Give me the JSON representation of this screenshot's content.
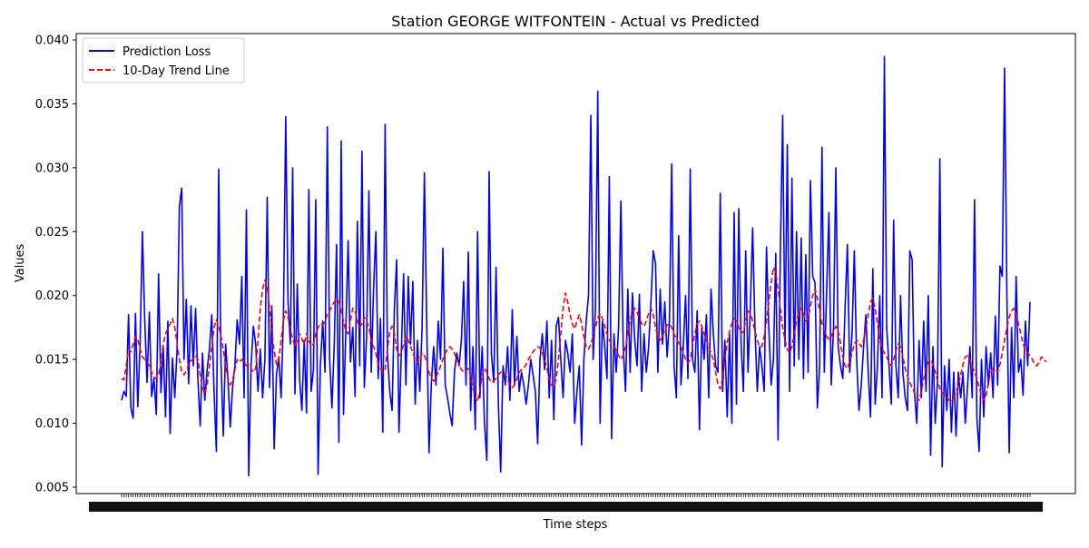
{
  "chart_data": {
    "type": "line",
    "title": "Station GEORGE WITFONTEIN - Actual vs Predicted",
    "xlabel": "Time steps",
    "ylabel": "Values",
    "ylim": [
      0.0045,
      0.0405
    ],
    "yticks": [
      0.005,
      0.01,
      0.015,
      0.02,
      0.025,
      0.03,
      0.035,
      0.04
    ],
    "ytick_labels": [
      "0.005",
      "0.010",
      "0.015",
      "0.020",
      "0.025",
      "0.030",
      "0.035",
      "0.040"
    ],
    "x_range": [
      0,
      559
    ],
    "grid": false,
    "legend_position": "top-left",
    "series": [
      {
        "name": "Prediction Loss",
        "color": "#0000ff",
        "style": "solid",
        "values": [
          0.0118,
          0.0125,
          0.0121,
          0.0185,
          0.0112,
          0.0104,
          0.0186,
          0.0113,
          0.0162,
          0.025,
          0.0181,
          0.0132,
          0.0187,
          0.0121,
          0.0135,
          0.0107,
          0.0217,
          0.0124,
          0.016,
          0.0105,
          0.018,
          0.0092,
          0.0151,
          0.012,
          0.0158,
          0.027,
          0.0284,
          0.015,
          0.0197,
          0.0131,
          0.0192,
          0.0145,
          0.019,
          0.0135,
          0.0098,
          0.0155,
          0.0118,
          0.0142,
          0.0158,
          0.0185,
          0.0125,
          0.0078,
          0.0299,
          0.0148,
          0.009,
          0.0162,
          0.0135,
          0.0097,
          0.0128,
          0.0145,
          0.0181,
          0.0162,
          0.0215,
          0.012,
          0.0267,
          0.0059,
          0.0145,
          0.0176,
          0.0162,
          0.0125,
          0.0158,
          0.012,
          0.015,
          0.0277,
          0.0128,
          0.0192,
          0.008,
          0.0138,
          0.0152,
          0.012,
          0.0182,
          0.034,
          0.0195,
          0.0162,
          0.03,
          0.0123,
          0.0209,
          0.0135,
          0.011,
          0.0165,
          0.0108,
          0.0283,
          0.0125,
          0.0142,
          0.0275,
          0.006,
          0.0145,
          0.018,
          0.014,
          0.0332,
          0.015,
          0.0112,
          0.0162,
          0.024,
          0.0085,
          0.0321,
          0.0107,
          0.0172,
          0.0243,
          0.0148,
          0.0175,
          0.0121,
          0.0258,
          0.0145,
          0.0313,
          0.0128,
          0.0168,
          0.0282,
          0.014,
          0.0205,
          0.025,
          0.0135,
          0.0182,
          0.0093,
          0.0334,
          0.0155,
          0.0125,
          0.011,
          0.0189,
          0.0228,
          0.0093,
          0.0155,
          0.0217,
          0.013,
          0.0215,
          0.0162,
          0.0211,
          0.0115,
          0.0165,
          0.0125,
          0.0175,
          0.0296,
          0.0178,
          0.0077,
          0.0131,
          0.016,
          0.013,
          0.018,
          0.015,
          0.0237,
          0.013,
          0.012,
          0.0108,
          0.0098,
          0.014,
          0.0155,
          0.0145,
          0.0165,
          0.0211,
          0.013,
          0.0234,
          0.011,
          0.016,
          0.0095,
          0.025,
          0.012,
          0.016,
          0.01,
          0.0071,
          0.0297,
          0.0154,
          0.0132,
          0.0222,
          0.0115,
          0.0062,
          0.0145,
          0.013,
          0.016,
          0.0118,
          0.0189,
          0.013,
          0.0168,
          0.0125,
          0.014,
          0.013,
          0.0115,
          0.013,
          0.015,
          0.0138,
          0.0125,
          0.0084,
          0.015,
          0.017,
          0.0142,
          0.018,
          0.012,
          0.0165,
          0.0103,
          0.0176,
          0.0183,
          0.015,
          0.012,
          0.0165,
          0.0155,
          0.014,
          0.017,
          0.01,
          0.0125,
          0.0145,
          0.0083,
          0.015,
          0.018,
          0.02,
          0.0341,
          0.015,
          0.019,
          0.036,
          0.01,
          0.018,
          0.016,
          0.0135,
          0.0293,
          0.0088,
          0.017,
          0.014,
          0.0175,
          0.0274,
          0.016,
          0.0125,
          0.0205,
          0.014,
          0.0202,
          0.0165,
          0.0145,
          0.0201,
          0.0125,
          0.017,
          0.014,
          0.016,
          0.0195,
          0.0235,
          0.0225,
          0.014,
          0.0205,
          0.0162,
          0.0195,
          0.0152,
          0.018,
          0.0303,
          0.0145,
          0.012,
          0.0247,
          0.013,
          0.016,
          0.02,
          0.0135,
          0.0299,
          0.015,
          0.014,
          0.0188,
          0.0095,
          0.0175,
          0.015,
          0.0185,
          0.012,
          0.0205,
          0.017,
          0.0145,
          0.014,
          0.028,
          0.0125,
          0.0165,
          0.0105,
          0.017,
          0.01,
          0.0265,
          0.0115,
          0.0268,
          0.0162,
          0.0125,
          0.0235,
          0.014,
          0.019,
          0.0253,
          0.0175,
          0.0125,
          0.016,
          0.0145,
          0.0125,
          0.0238,
          0.0175,
          0.013,
          0.015,
          0.0233,
          0.0087,
          0.0235,
          0.0341,
          0.016,
          0.0318,
          0.0125,
          0.0292,
          0.0145,
          0.025,
          0.015,
          0.0245,
          0.0135,
          0.0232,
          0.014,
          0.029,
          0.0215,
          0.021,
          0.0112,
          0.0145,
          0.0316,
          0.014,
          0.0202,
          0.0265,
          0.013,
          0.0175,
          0.03,
          0.016,
          0.0145,
          0.0135,
          0.019,
          0.024,
          0.014,
          0.017,
          0.0235,
          0.015,
          0.011,
          0.013,
          0.016,
          0.0185,
          0.014,
          0.0105,
          0.0221,
          0.0115,
          0.0145,
          0.02,
          0.012,
          0.0387,
          0.0175,
          0.0145,
          0.0115,
          0.0259,
          0.0145,
          0.012,
          0.02,
          0.014,
          0.012,
          0.011,
          0.0235,
          0.0228,
          0.0125,
          0.01,
          0.0165,
          0.012,
          0.018,
          0.0125,
          0.02,
          0.0075,
          0.016,
          0.01,
          0.0135,
          0.0307,
          0.0066,
          0.0145,
          0.011,
          0.015,
          0.0093,
          0.014,
          0.009,
          0.014,
          0.012,
          0.014,
          0.01,
          0.013,
          0.016,
          0.012,
          0.0275,
          0.0105,
          0.0078,
          0.015,
          0.0105,
          0.016,
          0.013,
          0.0155,
          0.012,
          0.0184,
          0.013,
          0.0223,
          0.0215,
          0.0378,
          0.02,
          0.0077,
          0.0175,
          0.012,
          0.0215,
          0.014,
          0.015,
          0.0122,
          0.018,
          0.0145,
          0.0195
        ]
      },
      {
        "name": "10-Day Trend Line",
        "color": "#ff0000",
        "style": "dashed",
        "values": [
          0.0135,
          0.0134,
          0.0145,
          0.0158,
          0.0156,
          0.0162,
          0.0168,
          0.0165,
          0.0158,
          0.0152,
          0.015,
          0.0148,
          0.0145,
          0.014,
          0.0136,
          0.0135,
          0.0138,
          0.0148,
          0.0162,
          0.017,
          0.0174,
          0.0178,
          0.0182,
          0.0175,
          0.0162,
          0.015,
          0.014,
          0.0138,
          0.0141,
          0.0146,
          0.0149,
          0.015,
          0.0153,
          0.015,
          0.0138,
          0.0128,
          0.0123,
          0.013,
          0.0145,
          0.016,
          0.0175,
          0.0181,
          0.0176,
          0.0168,
          0.0158,
          0.0145,
          0.0135,
          0.013,
          0.0134,
          0.0142,
          0.015,
          0.0148,
          0.015,
          0.0148,
          0.0145,
          0.0146,
          0.0143,
          0.014,
          0.0143,
          0.0165,
          0.019,
          0.0205,
          0.0212,
          0.0206,
          0.019,
          0.0172,
          0.0157,
          0.0146,
          0.015,
          0.0165,
          0.018,
          0.0188,
          0.0183,
          0.0173,
          0.0166,
          0.016,
          0.0165,
          0.017,
          0.0166,
          0.0162,
          0.017,
          0.0165,
          0.016,
          0.0162,
          0.017,
          0.0175,
          0.0178,
          0.0177,
          0.018,
          0.0185,
          0.0188,
          0.0192,
          0.0195,
          0.0197,
          0.0195,
          0.0188,
          0.018,
          0.0172,
          0.017,
          0.018,
          0.019,
          0.0188,
          0.018,
          0.0175,
          0.0178,
          0.0183,
          0.018,
          0.0175,
          0.0165,
          0.016,
          0.0155,
          0.0146,
          0.0143,
          0.014,
          0.0142,
          0.0158,
          0.0172,
          0.0176,
          0.017,
          0.0158,
          0.0153,
          0.0155,
          0.0162,
          0.0168,
          0.0165,
          0.016,
          0.0155,
          0.015,
          0.0147,
          0.015,
          0.0155,
          0.0153,
          0.0148,
          0.014,
          0.0135,
          0.0133,
          0.0136,
          0.014,
          0.0145,
          0.015,
          0.0155,
          0.0158,
          0.016,
          0.0158,
          0.0155,
          0.015,
          0.0146,
          0.0142,
          0.014,
          0.0141,
          0.0143,
          0.0137,
          0.0128,
          0.012,
          0.0117,
          0.0125,
          0.0138,
          0.0143,
          0.014,
          0.0135,
          0.0132,
          0.0133,
          0.0135,
          0.0138,
          0.014,
          0.014,
          0.0138,
          0.0135,
          0.013,
          0.0128,
          0.013,
          0.0135,
          0.014,
          0.0142,
          0.0143,
          0.0146,
          0.015,
          0.0153,
          0.0156,
          0.0158,
          0.016,
          0.0159,
          0.0155,
          0.015,
          0.0143,
          0.0135,
          0.013,
          0.0128,
          0.0135,
          0.015,
          0.017,
          0.019,
          0.0202,
          0.0195,
          0.0185,
          0.0178,
          0.0174,
          0.018,
          0.0185,
          0.0178,
          0.0168,
          0.016,
          0.0158,
          0.0162,
          0.0168,
          0.0175,
          0.0182,
          0.0186,
          0.0182,
          0.0176,
          0.017,
          0.0165,
          0.0162,
          0.016,
          0.0157,
          0.0153,
          0.015,
          0.0153,
          0.016,
          0.017,
          0.018,
          0.0188,
          0.019,
          0.0187,
          0.0182,
          0.0178,
          0.0176,
          0.018,
          0.0186,
          0.019,
          0.0185,
          0.0175,
          0.0168,
          0.0165,
          0.0168,
          0.0173,
          0.0177,
          0.0178,
          0.0175,
          0.017,
          0.0166,
          0.0163,
          0.016,
          0.0155,
          0.015,
          0.0147,
          0.015,
          0.016,
          0.017,
          0.0178,
          0.018,
          0.0176,
          0.017,
          0.0165,
          0.016,
          0.0155,
          0.015,
          0.014,
          0.013,
          0.0127,
          0.0135,
          0.015,
          0.0163,
          0.0172,
          0.0178,
          0.0182,
          0.018,
          0.0175,
          0.017,
          0.0172,
          0.018,
          0.0188,
          0.0186,
          0.018,
          0.0172,
          0.0165,
          0.016,
          0.016,
          0.0168,
          0.018,
          0.0195,
          0.021,
          0.0222,
          0.0218,
          0.0205,
          0.019,
          0.0175,
          0.0165,
          0.0158,
          0.0155,
          0.016,
          0.017,
          0.018,
          0.0188,
          0.019,
          0.0186,
          0.018,
          0.0182,
          0.0192,
          0.02,
          0.0205,
          0.0198,
          0.0188,
          0.0178,
          0.0172,
          0.0168,
          0.0166,
          0.0168,
          0.0172,
          0.0176,
          0.0172,
          0.0163,
          0.0152,
          0.0145,
          0.0143,
          0.0148,
          0.0155,
          0.0162,
          0.0165,
          0.0163,
          0.016,
          0.0165,
          0.0175,
          0.0185,
          0.0195,
          0.0198,
          0.019,
          0.0178,
          0.0165,
          0.0158,
          0.0155,
          0.0152,
          0.0148,
          0.0145,
          0.015,
          0.0157,
          0.0162,
          0.016,
          0.0152,
          0.0143,
          0.0137,
          0.0132,
          0.0128,
          0.0124,
          0.012,
          0.0118,
          0.0125,
          0.0135,
          0.0143,
          0.0148,
          0.015,
          0.0146,
          0.014,
          0.0133,
          0.0127,
          0.0124,
          0.0122,
          0.012,
          0.0118,
          0.0118,
          0.012,
          0.0124,
          0.013,
          0.0138,
          0.0146,
          0.0152,
          0.0153,
          0.015,
          0.0145,
          0.014,
          0.0135,
          0.0128,
          0.0122,
          0.0118,
          0.0122,
          0.0132,
          0.014,
          0.0143,
          0.0142,
          0.014,
          0.0146,
          0.0155,
          0.0165,
          0.0175,
          0.0183,
          0.0188,
          0.019,
          0.0185,
          0.0178,
          0.017,
          0.0162,
          0.0157,
          0.0155,
          0.0153,
          0.015,
          0.0146,
          0.0145,
          0.0148,
          0.0152,
          0.015,
          0.0148
        ]
      }
    ]
  }
}
